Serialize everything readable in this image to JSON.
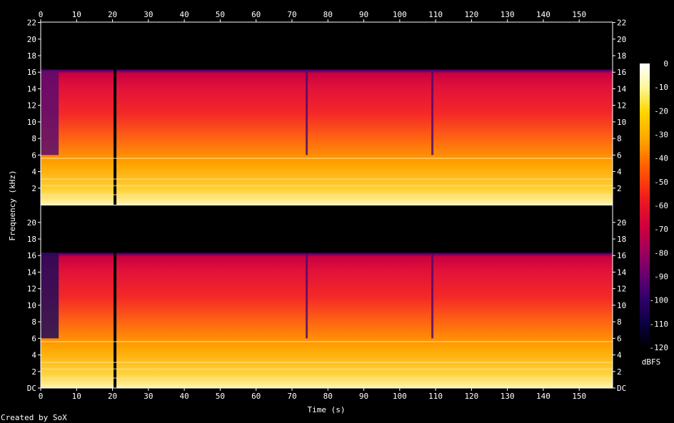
{
  "chart_data": {
    "type": "heatmap",
    "title": "",
    "xlabel": "Time (s)",
    "ylabel": "Frequency (kHz)",
    "xlim": [
      0,
      159.3
    ],
    "ylim": [
      0,
      22.05
    ],
    "x_ticks": [
      "0",
      "10",
      "20",
      "30",
      "40",
      "50",
      "60",
      "70",
      "80",
      "90",
      "100",
      "110",
      "120",
      "130",
      "140",
      "150"
    ],
    "x_tick_values": [
      0,
      10,
      20,
      30,
      40,
      50,
      60,
      70,
      80,
      90,
      100,
      110,
      120,
      130,
      140,
      150
    ],
    "y_ticks_upper": [
      "2",
      "4",
      "6",
      "8",
      "10",
      "12",
      "14",
      "16",
      "18",
      "20",
      "22"
    ],
    "y_ticks_lower": [
      "DC",
      "2",
      "4",
      "6",
      "8",
      "10",
      "12",
      "14",
      "16",
      "18",
      "20"
    ],
    "y_tick_values_upper": [
      2,
      4,
      6,
      8,
      10,
      12,
      14,
      16,
      18,
      20,
      22
    ],
    "y_tick_values_lower": [
      0,
      2,
      4,
      6,
      8,
      10,
      12,
      14,
      16,
      18,
      20
    ],
    "channels": [
      {
        "channel": 1,
        "cutoff_khz": 16.2,
        "notes": [
          "quiet intro 0–5 s",
          "gap near 20.5 s",
          "dips near 74 s and 109 s"
        ]
      },
      {
        "channel": 2,
        "cutoff_khz": 16.2,
        "notes": [
          "quiet intro 0–5 s",
          "gap near 20.5 s",
          "dips near 74 s and 109 s"
        ]
      }
    ],
    "colorbar": {
      "label": "dBFS",
      "range": [
        -120,
        0
      ],
      "tick_labels": [
        "0",
        "-10",
        "-20",
        "-30",
        "-40",
        "-50",
        "-60",
        "-70",
        "-80",
        "-90",
        "-100",
        "-110",
        "-120"
      ],
      "tick_values": [
        0,
        -10,
        -20,
        -30,
        -40,
        -50,
        -60,
        -70,
        -80,
        -90,
        -100,
        -110,
        -120
      ],
      "colors": [
        "#ffffff",
        "#fff7a0",
        "#ffd600",
        "#ffa300",
        "#ff5a00",
        "#f01e1e",
        "#d0003c",
        "#a0005a",
        "#64006e",
        "#30006a",
        "#0a0040",
        "#000000"
      ]
    }
  },
  "footer": {
    "credit": "Created by SoX"
  }
}
